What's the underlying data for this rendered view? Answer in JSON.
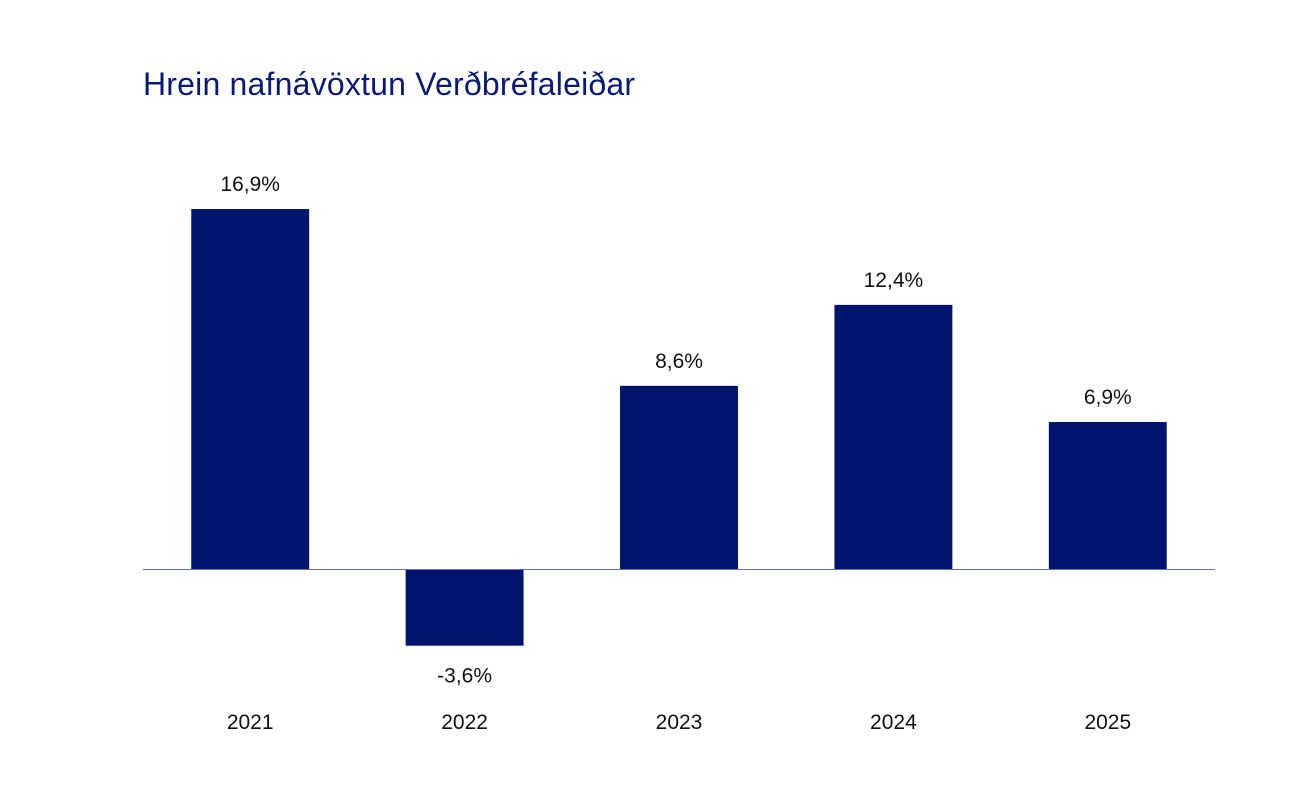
{
  "chart_data": {
    "type": "bar",
    "title": "Hrein nafnávöxtun Verðbréfaleiðar",
    "categories": [
      "2021",
      "2022",
      "2023",
      "2024",
      "2025"
    ],
    "values": [
      16.9,
      -3.6,
      8.6,
      12.4,
      6.9
    ],
    "data_labels": [
      "16,9%",
      "-3,6%",
      "8,6%",
      "12,4%",
      "6,9%"
    ],
    "xlabel": "",
    "ylabel": "",
    "grid": false,
    "legend": "none",
    "bar_color": "#00146b",
    "axis_color": "#6b6fa8"
  }
}
